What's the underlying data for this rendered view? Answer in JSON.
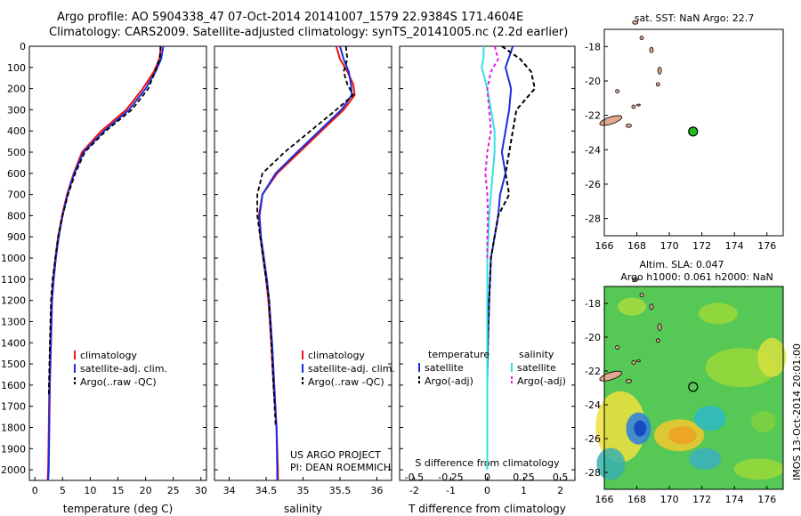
{
  "header": {
    "line1": "Argo profile: AO 5904338_47 07-Oct-2014 20141007_1579 22.9384S 171.4604E",
    "line2": "Climatology: CARS2009. Satellite-adjusted climatology: synTS_20141005.nc (2.2d earlier)"
  },
  "credit": {
    "line1": "US ARGO PROJECT",
    "line2": "PI: DEAN ROEMMICH"
  },
  "stamp": "IMOS 13-Oct-2014 20:01:00",
  "colors": {
    "climatology": "#ee1111",
    "satellite": "#1a2ee0",
    "argo": "#000000",
    "sat_salt": "#33e0e8",
    "argo_salt": "#dd22dd",
    "land": "#e0a890",
    "float": "#22bb22"
  },
  "chart_data": [
    {
      "type": "line",
      "name": "temperature",
      "xlabel": "temperature (deg C)",
      "ylabel": "",
      "xlim": [
        -1,
        31
      ],
      "ylim": [
        2050,
        0
      ],
      "xticks": [
        0,
        5,
        10,
        15,
        20,
        25,
        30
      ],
      "yticks": [
        0,
        100,
        200,
        300,
        400,
        500,
        600,
        700,
        800,
        900,
        1000,
        1100,
        1200,
        1300,
        1400,
        1500,
        1600,
        1700,
        1800,
        1900,
        2000
      ],
      "legend": [
        "climatology",
        "satellite-adj. clim.",
        "Argo(..raw -QC)"
      ],
      "series": [
        {
          "name": "climatology",
          "x": [
            22.8,
            22.5,
            21.5,
            19.5,
            16.5,
            12,
            8.5,
            7,
            5.8,
            4.9,
            4.2,
            3.7,
            3.3,
            3.0,
            2.8,
            2.6,
            2.5,
            2.4,
            2.3
          ],
          "y": [
            0,
            60,
            120,
            200,
            300,
            400,
            500,
            600,
            700,
            800,
            900,
            1000,
            1100,
            1200,
            1400,
            1600,
            1800,
            2000,
            2050
          ]
        },
        {
          "name": "satellite-adj. clim.",
          "x": [
            23.2,
            22.8,
            21.8,
            20,
            17,
            12.5,
            8.8,
            7.1,
            5.9,
            5.0,
            4.3,
            3.8,
            3.4,
            3.1,
            2.9,
            2.7,
            2.6,
            2.5,
            2.4
          ],
          "y": [
            0,
            60,
            120,
            200,
            300,
            400,
            500,
            600,
            700,
            800,
            900,
            1000,
            1100,
            1200,
            1400,
            1600,
            1800,
            2000,
            2050
          ]
        },
        {
          "name": "Argo(..raw -QC)",
          "x": [
            22.7,
            22.6,
            22.0,
            20.5,
            17.5,
            12.8,
            9,
            7.3,
            6.0,
            5.0,
            4.2,
            3.7,
            3.2,
            2.9,
            2.7,
            2.5
          ],
          "y": [
            0,
            50,
            100,
            200,
            300,
            400,
            500,
            600,
            700,
            800,
            900,
            1000,
            1100,
            1200,
            1400,
            1650
          ]
        }
      ]
    },
    {
      "type": "line",
      "name": "salinity",
      "xlabel": "salinity",
      "ylabel": "",
      "xlim": [
        33.8,
        36.2
      ],
      "ylim": [
        2050,
        0
      ],
      "xticks": [
        34,
        34.5,
        35,
        35.5,
        36
      ],
      "legend": [
        "climatology",
        "satellite-adj. clim.",
        "Argo(..raw -QC)"
      ],
      "series": [
        {
          "name": "climatology",
          "x": [
            35.45,
            35.5,
            35.6,
            35.68,
            35.7,
            35.55,
            35.25,
            34.95,
            34.65,
            34.45,
            34.4,
            34.42,
            34.46,
            34.5,
            34.53,
            34.57,
            34.6,
            34.64,
            34.66,
            34.66
          ],
          "y": [
            0,
            60,
            120,
            180,
            230,
            300,
            400,
            500,
            600,
            700,
            800,
            900,
            1000,
            1100,
            1200,
            1400,
            1600,
            1800,
            2000,
            2050
          ]
        },
        {
          "name": "satellite-adj. clim.",
          "x": [
            35.5,
            35.55,
            35.62,
            35.65,
            35.66,
            35.52,
            35.22,
            34.92,
            34.63,
            34.45,
            34.41,
            34.43,
            34.47,
            34.51,
            34.54,
            34.58,
            34.61,
            34.64,
            34.65,
            34.65
          ],
          "y": [
            0,
            60,
            120,
            180,
            230,
            300,
            400,
            500,
            600,
            700,
            800,
            900,
            1000,
            1100,
            1200,
            1400,
            1600,
            1800,
            2000,
            2050
          ]
        },
        {
          "name": "Argo(..raw -QC)",
          "x": [
            35.58,
            35.6,
            35.55,
            35.6,
            35.68,
            35.45,
            35.1,
            34.75,
            34.45,
            34.38,
            34.38,
            34.42,
            34.46,
            34.5,
            34.54,
            34.57,
            34.6,
            34.63
          ],
          "y": [
            0,
            60,
            120,
            180,
            230,
            300,
            400,
            500,
            600,
            700,
            800,
            900,
            1000,
            1100,
            1200,
            1400,
            1600,
            1800
          ]
        }
      ]
    },
    {
      "type": "line",
      "name": "differences",
      "xlabel": "T difference from climatology",
      "xlabel_top": "S difference from climatology",
      "xlim": [
        -2.4,
        2.4
      ],
      "ylim": [
        2050,
        0
      ],
      "xticks": [
        -2,
        -1,
        0,
        1,
        2
      ],
      "sticks": [
        "-0.5",
        "-0.25",
        "0",
        "0.25",
        "0.5"
      ],
      "legend_t_header": "temperature",
      "legend_s_header": "salinity",
      "legend": [
        "satellite",
        "Argo(-adj)",
        "satellite",
        "Argo(-adj)"
      ],
      "series": [
        {
          "name": "temperature satellite",
          "x": [
            0.7,
            0.6,
            0.5,
            0.65,
            0.6,
            0.5,
            0.4,
            0.5,
            0.35,
            0.3,
            0.2,
            0.1,
            0.05,
            0.02,
            0.0,
            0.0,
            0.0
          ],
          "y": [
            0,
            50,
            100,
            200,
            300,
            400,
            500,
            600,
            700,
            800,
            900,
            1000,
            1200,
            1400,
            1600,
            1800,
            2000
          ]
        },
        {
          "name": "temperature Argo(-adj)",
          "x": [
            0.4,
            0.9,
            1.2,
            1.3,
            0.8,
            0.7,
            0.6,
            0.5,
            0.6,
            0.3,
            0.2,
            0.1,
            0.05,
            0.0,
            0.0
          ],
          "y": [
            0,
            60,
            120,
            200,
            300,
            400,
            500,
            600,
            700,
            800,
            900,
            1000,
            1200,
            1500,
            1800
          ]
        },
        {
          "name": "salinity satellite",
          "x": [
            -0.1,
            -0.1,
            -0.15,
            0.0,
            0.1,
            0.2,
            0.2,
            0.15,
            0.1,
            0.05,
            0.03,
            0.0,
            0.0,
            0.0,
            0.0,
            0.0
          ],
          "y": [
            0,
            50,
            100,
            200,
            300,
            400,
            500,
            600,
            700,
            800,
            900,
            1000,
            1200,
            1500,
            1800,
            2000
          ]
        },
        {
          "name": "salinity Argo(-adj)",
          "x": [
            0.2,
            0.3,
            0.1,
            0.0,
            0.05,
            0.1,
            0.0,
            -0.05,
            0.0,
            0.02,
            0.0,
            0.0
          ],
          "y": [
            0,
            60,
            120,
            200,
            300,
            400,
            500,
            600,
            700,
            800,
            900,
            1000
          ]
        }
      ]
    },
    {
      "type": "scatter",
      "name": "sst_map",
      "title": "sat. SST: NaN Argo: 22.7",
      "xlim": [
        166,
        177
      ],
      "ylim": [
        -29,
        -17
      ],
      "xticks": [
        166,
        168,
        170,
        172,
        174,
        176
      ],
      "yticks": [
        -18,
        -20,
        -22,
        -24,
        -26,
        -28
      ],
      "float": {
        "lon": 171.46,
        "lat": -22.94
      }
    },
    {
      "type": "heatmap",
      "name": "sla_map",
      "title_line1": "Altim. SLA: 0.047",
      "title_line2": "Argo h1000: 0.061 h2000: NaN",
      "xlim": [
        166,
        177
      ],
      "ylim": [
        -29,
        -17
      ],
      "xticks": [
        166,
        168,
        170,
        172,
        174,
        176
      ],
      "yticks": [
        -18,
        -20,
        -22,
        -24,
        -26,
        -28
      ],
      "float": {
        "lon": 171.46,
        "lat": -22.94
      }
    }
  ]
}
